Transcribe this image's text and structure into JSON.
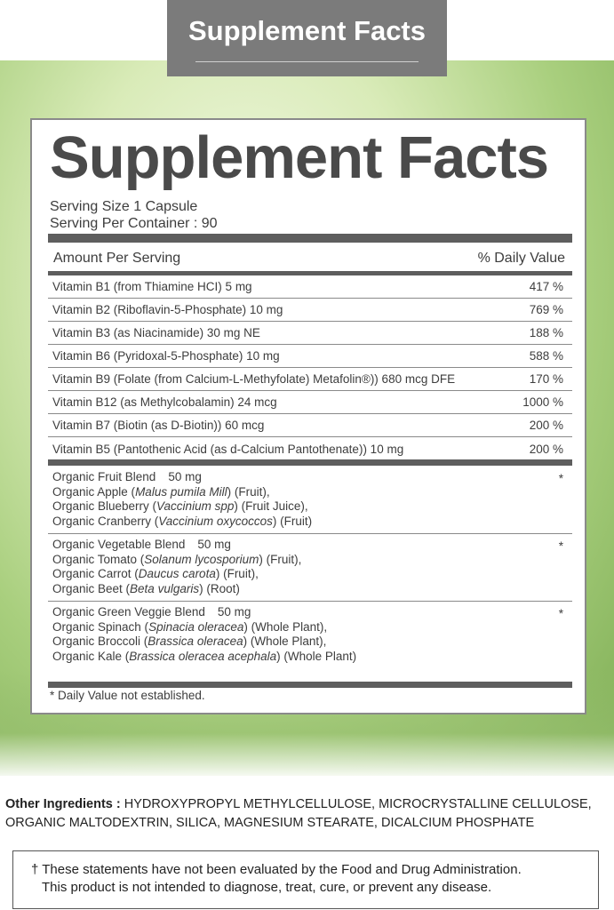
{
  "banner": {
    "title": "Supplement Facts"
  },
  "panel": {
    "title": "Supplement Facts",
    "serving_size": "Serving Size  1 Capsule",
    "servings_per_container": "Serving Per Container : 90",
    "header_amount": "Amount Per Serving",
    "header_dv": "% Daily Value",
    "vitamins": [
      {
        "name": "Vitamin B1 (from Thiamine HCI)  5 mg",
        "dv": "417 %"
      },
      {
        "name": "Vitamin B2 (Riboflavin-5-Phosphate)  10 mg",
        "dv": "769 %"
      },
      {
        "name": "Vitamin B3 (as Niacinamide)  30 mg NE",
        "dv": "188 %"
      },
      {
        "name": "Vitamin B6 (Pyridoxal-5-Phosphate)  10 mg",
        "dv": "588 %"
      },
      {
        "name": "Vitamin B9 (Folate (from Calcium-L-Methyfolate) Metafolin®))  680 mcg DFE",
        "dv": "170 %"
      },
      {
        "name": "Vitamin B12 (as Methylcobalamin)  24 mcg",
        "dv": "1000 %"
      },
      {
        "name": "Vitamin B7 (Biotin (as D-Biotin))  60 mcg",
        "dv": "200 %"
      },
      {
        "name": "Vitamin B5 (Pantothenic Acid (as d-Calcium Pantothenate))  10 mg",
        "dv": "200 %"
      }
    ],
    "blends": [
      {
        "name": "Organic Fruit Blend",
        "amount": "50 mg",
        "dv": "*",
        "lines": [
          [
            {
              "t": "Organic Apple ("
            },
            {
              "t": "Malus pumila Mill",
              "i": true
            },
            {
              "t": ") (Fruit),"
            }
          ],
          [
            {
              "t": "Organic Blueberry ("
            },
            {
              "t": "Vaccinium spp",
              "i": true
            },
            {
              "t": ") (Fruit Juice),"
            }
          ],
          [
            {
              "t": "Organic Cranberry ("
            },
            {
              "t": "Vaccinium oxycoccos",
              "i": true
            },
            {
              "t": ") (Fruit)"
            }
          ]
        ]
      },
      {
        "name": "Organic Vegetable Blend",
        "amount": "50 mg",
        "dv": "*",
        "lines": [
          [
            {
              "t": "Organic Tomato ("
            },
            {
              "t": "Solanum lycosporium",
              "i": true
            },
            {
              "t": ") (Fruit),"
            }
          ],
          [
            {
              "t": "Organic Carrot ("
            },
            {
              "t": "Daucus carota",
              "i": true
            },
            {
              "t": ") (Fruit),"
            }
          ],
          [
            {
              "t": "Organic Beet ("
            },
            {
              "t": "Beta vulgaris",
              "i": true
            },
            {
              "t": ") (Root)"
            }
          ]
        ]
      },
      {
        "name": "Organic Green Veggie Blend",
        "amount": "50 mg",
        "dv": "*",
        "lines": [
          [
            {
              "t": "Organic Spinach ("
            },
            {
              "t": "Spinacia oleracea",
              "i": true
            },
            {
              "t": ") (Whole Plant),"
            }
          ],
          [
            {
              "t": "Organic Broccoli ("
            },
            {
              "t": "Brassica oleracea",
              "i": true
            },
            {
              "t": ") (Whole Plant),"
            }
          ],
          [
            {
              "t": "Organic Kale ("
            },
            {
              "t": "Brassica oleracea acephala",
              "i": true
            },
            {
              "t": ") (Whole Plant)"
            }
          ]
        ]
      }
    ],
    "footnote": "* Daily Value not established."
  },
  "other_ingredients": {
    "label": "Other Ingredients :",
    "text": " HYDROXYPROPYL METHYLCELLULOSE, MICROCRYSTALLINE CELLULOSE, ORGANIC MALTODEXTRIN, SILICA, MAGNESIUM STEARATE, DICALCIUM PHOSPHATE"
  },
  "disclaimer": {
    "line1": "† These statements have not been evaluated by the Food and Drug Administration.",
    "line2": "This product is not intended to diagnose, treat, cure, or prevent any disease."
  }
}
